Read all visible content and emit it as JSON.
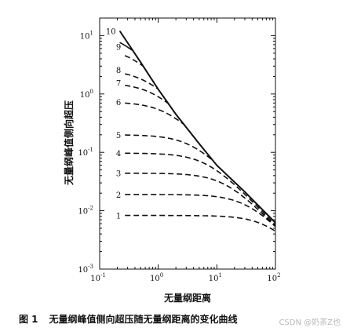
{
  "chart_data": {
    "type": "line",
    "title": "",
    "xlabel": "无量纲距离",
    "ylabel": "无量纲峰值侧向超压",
    "xscale": "log",
    "yscale": "log",
    "xlim": [
      0.1,
      100
    ],
    "ylim": [
      0.001,
      20
    ],
    "grid": false,
    "legend": "none",
    "x_ticks": [
      {
        "value": 0.1,
        "base": "10",
        "exp": "-1"
      },
      {
        "value": 1,
        "base": "10",
        "exp": "0"
      },
      {
        "value": 10,
        "base": "10",
        "exp": "1"
      },
      {
        "value": 100,
        "base": "10",
        "exp": "2"
      }
    ],
    "y_ticks": [
      {
        "value": 0.001,
        "base": "10",
        "exp": "-3"
      },
      {
        "value": 0.01,
        "base": "10",
        "exp": "-2"
      },
      {
        "value": 0.1,
        "base": "10",
        "exp": "-1"
      },
      {
        "value": 1,
        "base": "10",
        "exp": "0"
      },
      {
        "value": 10,
        "base": "10",
        "exp": "1"
      }
    ],
    "envelope": {
      "style": "solid",
      "x": [
        0.22,
        0.5,
        1,
        2,
        5,
        10,
        30,
        100
      ],
      "y": [
        12,
        3.5,
        1.2,
        0.45,
        0.14,
        0.06,
        0.021,
        0.0062
      ]
    },
    "series": [
      {
        "name": "10",
        "plateau": 12,
        "start_x": 0.22
      },
      {
        "name": "9",
        "plateau": 6.5,
        "start_x": 0.27
      },
      {
        "name": "8",
        "plateau": 2.6,
        "start_x": 0.27
      },
      {
        "name": "7",
        "plateau": 1.55,
        "start_x": 0.27
      },
      {
        "name": "6",
        "plateau": 0.73,
        "start_x": 0.27
      },
      {
        "name": "5",
        "plateau": 0.2,
        "start_x": 0.27
      },
      {
        "name": "4",
        "plateau": 0.097,
        "start_x": 0.27
      },
      {
        "name": "3",
        "plateau": 0.044,
        "start_x": 0.27
      },
      {
        "name": "2",
        "plateau": 0.019,
        "start_x": 0.27
      },
      {
        "name": "1",
        "plateau": 0.0083,
        "start_x": 0.27
      }
    ]
  },
  "caption": {
    "figure_no": "图 1",
    "text": "无量纲峰值侧向超压随无量纲距离的变化曲线"
  },
  "watermark": "CSDN @奶茶Z也"
}
